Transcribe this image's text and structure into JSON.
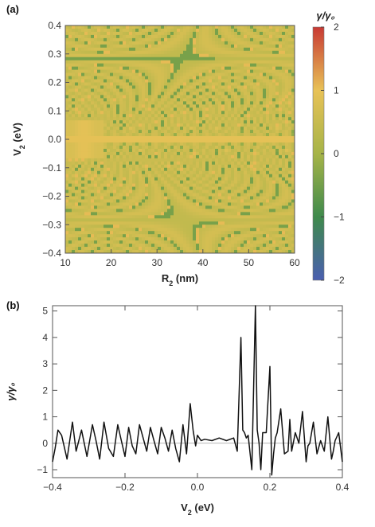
{
  "chart_data": [
    {
      "panel": "(a)",
      "type": "heatmap",
      "xlabel_main": "R",
      "xlabel_sub": "2",
      "xlabel_unit": " (nm)",
      "ylabel_main": "V",
      "ylabel_sub": "2",
      "ylabel_unit": " (eV)",
      "xlim": [
        10,
        60
      ],
      "ylim": [
        -0.4,
        0.4
      ],
      "xticks": [
        "10",
        "20",
        "30",
        "40",
        "50",
        "60"
      ],
      "yticks": [
        "−0.4",
        "−0.3",
        "−0.2",
        "−0.1",
        "0.0",
        "0.1",
        "0.2",
        "0.3",
        "0.4"
      ],
      "colorbar_title": "γ/γ₀",
      "colorbar_range": [
        -2,
        2
      ],
      "colorbar_ticks": [
        "2",
        "1",
        "0",
        "−1",
        "−2"
      ],
      "colorscale": [
        "#4a5fb0",
        "#3f8a4c",
        "#a6b448",
        "#e8c257",
        "#c83a34"
      ]
    },
    {
      "panel": "(b)",
      "type": "line",
      "xlabel_main": "V",
      "xlabel_sub": "2",
      "xlabel_unit": " (eV)",
      "ylabel": "γ/γ₀",
      "xlim": [
        -0.4,
        0.4
      ],
      "ylim": [
        -1.3,
        5.2
      ],
      "xticks": [
        "−0.4",
        "−0.2",
        "0.0",
        "0.2",
        "0.4"
      ],
      "yticks": [
        "−1",
        "0",
        "1",
        "2",
        "3",
        "4",
        "5"
      ],
      "series": [
        {
          "color": "#111111",
          "x": [
            -0.4,
            -0.393,
            -0.385,
            -0.375,
            -0.36,
            -0.345,
            -0.335,
            -0.32,
            -0.305,
            -0.29,
            -0.28,
            -0.27,
            -0.258,
            -0.245,
            -0.232,
            -0.22,
            -0.21,
            -0.2,
            -0.19,
            -0.18,
            -0.17,
            -0.16,
            -0.15,
            -0.14,
            -0.13,
            -0.12,
            -0.11,
            -0.1,
            -0.09,
            -0.08,
            -0.07,
            -0.06,
            -0.05,
            -0.04,
            -0.03,
            -0.02,
            -0.012,
            -0.005,
            0.0,
            0.01,
            0.02,
            0.04,
            0.06,
            0.08,
            0.1,
            0.11,
            0.12,
            0.125,
            0.13,
            0.135,
            0.14,
            0.15,
            0.16,
            0.165,
            0.17,
            0.175,
            0.18,
            0.19,
            0.2,
            0.205,
            0.21,
            0.215,
            0.22,
            0.23,
            0.24,
            0.25,
            0.255,
            0.26,
            0.27,
            0.28,
            0.29,
            0.3,
            0.305,
            0.31,
            0.32,
            0.33,
            0.34,
            0.35,
            0.36,
            0.37,
            0.375,
            0.38,
            0.39,
            0.4
          ],
          "y": [
            -0.7,
            -0.2,
            0.5,
            0.3,
            -0.6,
            0.8,
            -0.3,
            0.5,
            -0.5,
            0.7,
            0.1,
            -0.6,
            0.8,
            -0.2,
            -0.5,
            0.7,
            0.1,
            -0.5,
            0.6,
            -0.1,
            -0.4,
            0.7,
            0.2,
            -0.3,
            0.6,
            0.1,
            -0.4,
            0.6,
            0.2,
            -0.3,
            0.5,
            -0.2,
            -0.7,
            0.7,
            -0.4,
            1.5,
            0.5,
            -0.1,
            0.3,
            0.1,
            0.15,
            0.1,
            0.2,
            0.1,
            0.2,
            -0.3,
            4.0,
            0.5,
            0.4,
            0.2,
            0.3,
            -1.0,
            5.2,
            0.5,
            0.0,
            -1.0,
            0.4,
            0.4,
            2.9,
            -1.2,
            -0.4,
            0.2,
            0.4,
            1.3,
            -0.4,
            -0.3,
            0.9,
            -0.3,
            0.4,
            0.0,
            1.2,
            -0.7,
            -0.1,
            0.0,
            0.8,
            -0.4,
            0.1,
            -0.3,
            1.0,
            -0.6,
            -0.3,
            0.1,
            0.4,
            -0.7
          ]
        }
      ]
    }
  ]
}
